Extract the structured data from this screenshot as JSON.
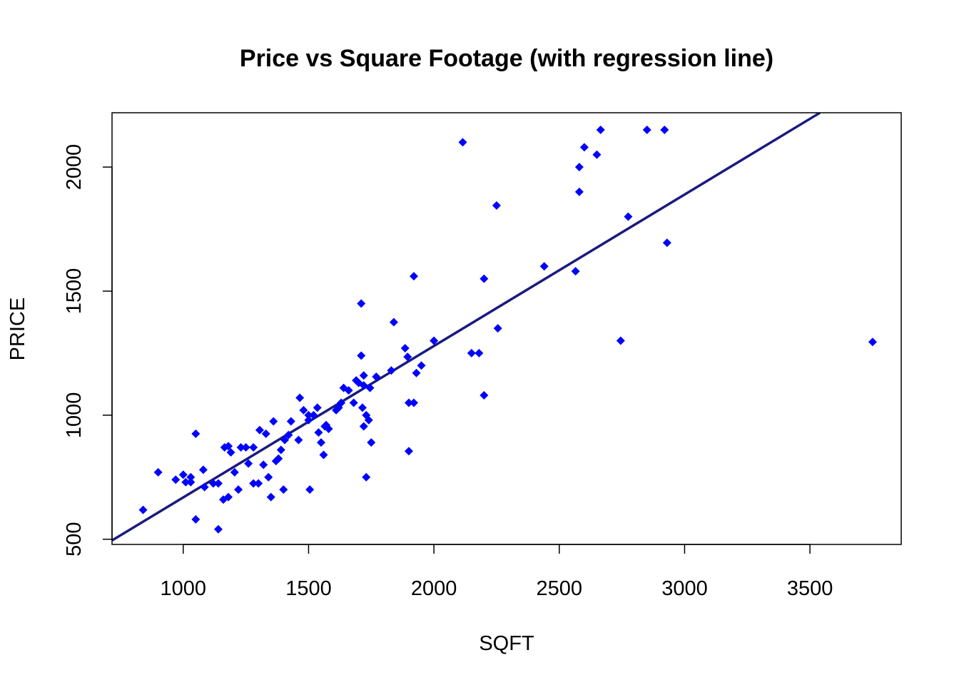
{
  "chart_data": {
    "type": "scatter",
    "title": "Price vs Square Footage (with regression line)",
    "xlabel": "SQFT",
    "ylabel": "PRICE",
    "xlim": [
      716,
      3864
    ],
    "ylim": [
      479,
      2219
    ],
    "xticks": [
      1000,
      1500,
      2000,
      2500,
      3000,
      3500
    ],
    "yticks": [
      500,
      1000,
      1500,
      2000
    ],
    "grid": false,
    "legend": "none",
    "marker": "diamond",
    "colors": {
      "points": "#0000ff",
      "line": "#1a1a80",
      "axes": "#000000"
    },
    "regression_line": {
      "x": [
        716,
        3540
      ],
      "y": [
        495,
        2219
      ]
    },
    "points": [
      [
        840,
        618
      ],
      [
        900,
        770
      ],
      [
        970,
        740
      ],
      [
        1000,
        760
      ],
      [
        1010,
        730
      ],
      [
        1030,
        730
      ],
      [
        1030,
        750
      ],
      [
        1050,
        925
      ],
      [
        1050,
        580
      ],
      [
        1080,
        780
      ],
      [
        1085,
        710
      ],
      [
        1120,
        725
      ],
      [
        1140,
        725
      ],
      [
        1140,
        540
      ],
      [
        1160,
        660
      ],
      [
        1165,
        870
      ],
      [
        1180,
        875
      ],
      [
        1180,
        670
      ],
      [
        1190,
        850
      ],
      [
        1205,
        770
      ],
      [
        1220,
        700
      ],
      [
        1230,
        870
      ],
      [
        1250,
        870
      ],
      [
        1260,
        805
      ],
      [
        1280,
        870
      ],
      [
        1280,
        725
      ],
      [
        1300,
        725
      ],
      [
        1305,
        940
      ],
      [
        1320,
        800
      ],
      [
        1330,
        925
      ],
      [
        1340,
        750
      ],
      [
        1350,
        670
      ],
      [
        1360,
        975
      ],
      [
        1370,
        815
      ],
      [
        1380,
        825
      ],
      [
        1390,
        860
      ],
      [
        1400,
        700
      ],
      [
        1405,
        900
      ],
      [
        1420,
        920
      ],
      [
        1430,
        975
      ],
      [
        1460,
        900
      ],
      [
        1465,
        1070
      ],
      [
        1480,
        1020
      ],
      [
        1500,
        1000
      ],
      [
        1500,
        980
      ],
      [
        1505,
        700
      ],
      [
        1520,
        1000
      ],
      [
        1535,
        1030
      ],
      [
        1540,
        930
      ],
      [
        1550,
        890
      ],
      [
        1560,
        840
      ],
      [
        1565,
        955
      ],
      [
        1570,
        960
      ],
      [
        1580,
        945
      ],
      [
        1610,
        1020
      ],
      [
        1620,
        1030
      ],
      [
        1630,
        1050
      ],
      [
        1640,
        1110
      ],
      [
        1660,
        1100
      ],
      [
        1680,
        1050
      ],
      [
        1690,
        1140
      ],
      [
        1700,
        1130
      ],
      [
        1710,
        1450
      ],
      [
        1710,
        1240
      ],
      [
        1715,
        1030
      ],
      [
        1720,
        1160
      ],
      [
        1720,
        1120
      ],
      [
        1720,
        955
      ],
      [
        1730,
        1000
      ],
      [
        1730,
        750
      ],
      [
        1740,
        980
      ],
      [
        1745,
        1110
      ],
      [
        1750,
        890
      ],
      [
        1770,
        1155
      ],
      [
        1830,
        1180
      ],
      [
        1840,
        1375
      ],
      [
        1885,
        1270
      ],
      [
        1895,
        1235
      ],
      [
        1900,
        1050
      ],
      [
        1900,
        855
      ],
      [
        1920,
        1560
      ],
      [
        1920,
        1050
      ],
      [
        1930,
        1170
      ],
      [
        1950,
        1200
      ],
      [
        2000,
        1300
      ],
      [
        2115,
        2100
      ],
      [
        2150,
        1250
      ],
      [
        2180,
        1250
      ],
      [
        2200,
        1550
      ],
      [
        2200,
        1080
      ],
      [
        2250,
        1845
      ],
      [
        2255,
        1350
      ],
      [
        2440,
        1600
      ],
      [
        2565,
        1580
      ],
      [
        2580,
        2000
      ],
      [
        2580,
        1900
      ],
      [
        2600,
        2080
      ],
      [
        2650,
        2050
      ],
      [
        2665,
        2150
      ],
      [
        2745,
        1300
      ],
      [
        2775,
        1800
      ],
      [
        2850,
        2150
      ],
      [
        2920,
        2150
      ],
      [
        2930,
        1695
      ],
      [
        3750,
        1295
      ]
    ]
  }
}
